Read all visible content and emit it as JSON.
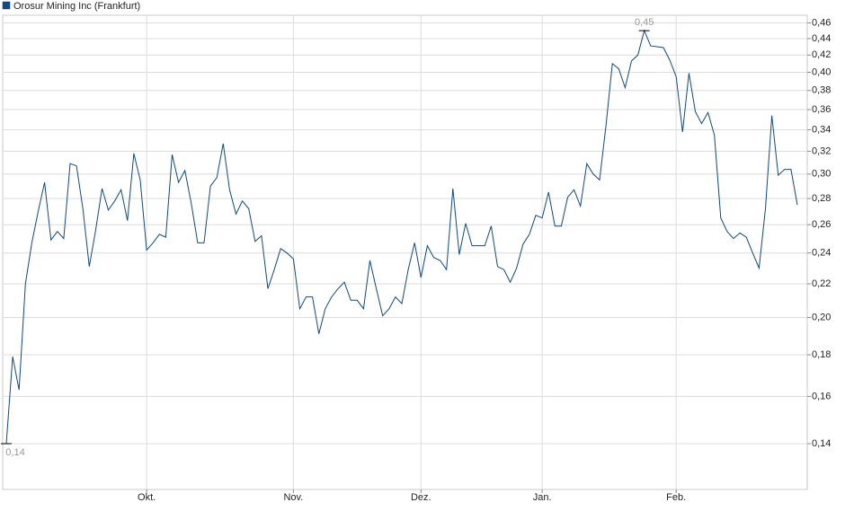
{
  "chart_data": {
    "type": "line",
    "log_scale": true,
    "grid": true,
    "legend": "top-left",
    "ylim": [
      0.123,
      0.47
    ],
    "yticks": [
      {
        "value": 0.14,
        "label": "0,14"
      },
      {
        "value": 0.16,
        "label": "0,16"
      },
      {
        "value": 0.18,
        "label": "0,18"
      },
      {
        "value": 0.2,
        "label": "0,20"
      },
      {
        "value": 0.22,
        "label": "0,22"
      },
      {
        "value": 0.24,
        "label": "0,24"
      },
      {
        "value": 0.26,
        "label": "0,26"
      },
      {
        "value": 0.28,
        "label": "0,28"
      },
      {
        "value": 0.3,
        "label": "0,30"
      },
      {
        "value": 0.32,
        "label": "0,32"
      },
      {
        "value": 0.34,
        "label": "0,34"
      },
      {
        "value": 0.36,
        "label": "0,36"
      },
      {
        "value": 0.38,
        "label": "0,38"
      },
      {
        "value": 0.4,
        "label": "0,40"
      },
      {
        "value": 0.42,
        "label": "0,42"
      },
      {
        "value": 0.44,
        "label": "0,44"
      },
      {
        "value": 0.46,
        "label": "0,46"
      }
    ],
    "categories": [
      null,
      null,
      null,
      null,
      null,
      null,
      null,
      null,
      null,
      null,
      null,
      null,
      null,
      null,
      null,
      null,
      null,
      null,
      null,
      null,
      null,
      null,
      "Okt.",
      null,
      null,
      null,
      null,
      null,
      null,
      null,
      null,
      null,
      null,
      null,
      null,
      null,
      null,
      null,
      null,
      null,
      null,
      null,
      null,
      null,
      null,
      "Nov.",
      null,
      null,
      null,
      null,
      null,
      null,
      null,
      null,
      null,
      null,
      null,
      null,
      null,
      null,
      null,
      null,
      null,
      null,
      null,
      "Dez.",
      null,
      null,
      null,
      null,
      null,
      null,
      null,
      null,
      null,
      null,
      null,
      null,
      null,
      null,
      null,
      null,
      null,
      null,
      "Jan.",
      null,
      null,
      null,
      null,
      null,
      null,
      null,
      null,
      null,
      null,
      null,
      null,
      null,
      null,
      null,
      null,
      null,
      null,
      null,
      null,
      "Feb.",
      null,
      null,
      null,
      null,
      null,
      null,
      null,
      null,
      null,
      null,
      null,
      null,
      null,
      null,
      null,
      null,
      null,
      null,
      null
    ],
    "series": [
      {
        "name": "Orosur Mining Inc (Frankfurt)",
        "color": "#0b4a8f",
        "values": [
          0.14,
          0.179,
          0.163,
          0.22,
          0.247,
          0.27,
          0.293,
          0.249,
          0.255,
          0.25,
          0.309,
          0.307,
          0.272,
          0.231,
          0.256,
          0.288,
          0.271,
          0.278,
          0.287,
          0.263,
          0.318,
          0.295,
          0.242,
          0.247,
          0.253,
          0.251,
          0.317,
          0.293,
          0.303,
          0.276,
          0.247,
          0.247,
          0.29,
          0.297,
          0.327,
          0.287,
          0.268,
          0.278,
          0.272,
          0.248,
          0.252,
          0.217,
          0.229,
          0.243,
          0.24,
          0.236,
          0.205,
          0.212,
          0.212,
          0.191,
          0.205,
          0.212,
          0.217,
          0.221,
          0.21,
          0.21,
          0.205,
          0.235,
          0.217,
          0.201,
          0.205,
          0.212,
          0.208,
          0.229,
          0.247,
          0.224,
          0.245,
          0.237,
          0.235,
          0.229,
          0.288,
          0.239,
          0.261,
          0.245,
          0.245,
          0.245,
          0.259,
          0.231,
          0.229,
          0.221,
          0.23,
          0.246,
          0.253,
          0.267,
          0.265,
          0.285,
          0.259,
          0.259,
          0.281,
          0.287,
          0.274,
          0.309,
          0.3,
          0.295,
          0.344,
          0.41,
          0.404,
          0.383,
          0.413,
          0.42,
          0.45,
          0.431,
          0.43,
          0.429,
          0.414,
          0.395,
          0.338,
          0.399,
          0.358,
          0.346,
          0.357,
          0.335,
          0.265,
          0.255,
          0.25,
          0.254,
          0.251,
          0.24,
          0.23,
          0.272,
          0.354,
          0.299,
          0.304,
          0.304,
          0.275
        ],
        "value_labels": [
          "0,14",
          null,
          null,
          null,
          null,
          null,
          null,
          null,
          null,
          null,
          null,
          null,
          null,
          null,
          null,
          null,
          null,
          null,
          null,
          null,
          null,
          null,
          null,
          null,
          null,
          null,
          null,
          null,
          null,
          null,
          null,
          null,
          null,
          null,
          null,
          null,
          null,
          null,
          null,
          null,
          null,
          null,
          null,
          null,
          null,
          null,
          null,
          null,
          null,
          null,
          null,
          null,
          null,
          null,
          null,
          null,
          null,
          null,
          null,
          null,
          null,
          null,
          null,
          null,
          null,
          null,
          null,
          null,
          null,
          null,
          null,
          null,
          null,
          null,
          null,
          null,
          null,
          null,
          null,
          null,
          null,
          null,
          null,
          null,
          null,
          null,
          null,
          null,
          null,
          null,
          null,
          null,
          null,
          null,
          null,
          null,
          null,
          null,
          null,
          null,
          "0,45",
          null,
          null,
          null,
          null,
          null,
          null,
          null,
          null,
          null,
          null,
          null,
          null,
          null,
          null,
          null,
          null,
          null,
          null,
          null,
          null,
          null,
          null,
          null,
          null
        ]
      }
    ]
  }
}
